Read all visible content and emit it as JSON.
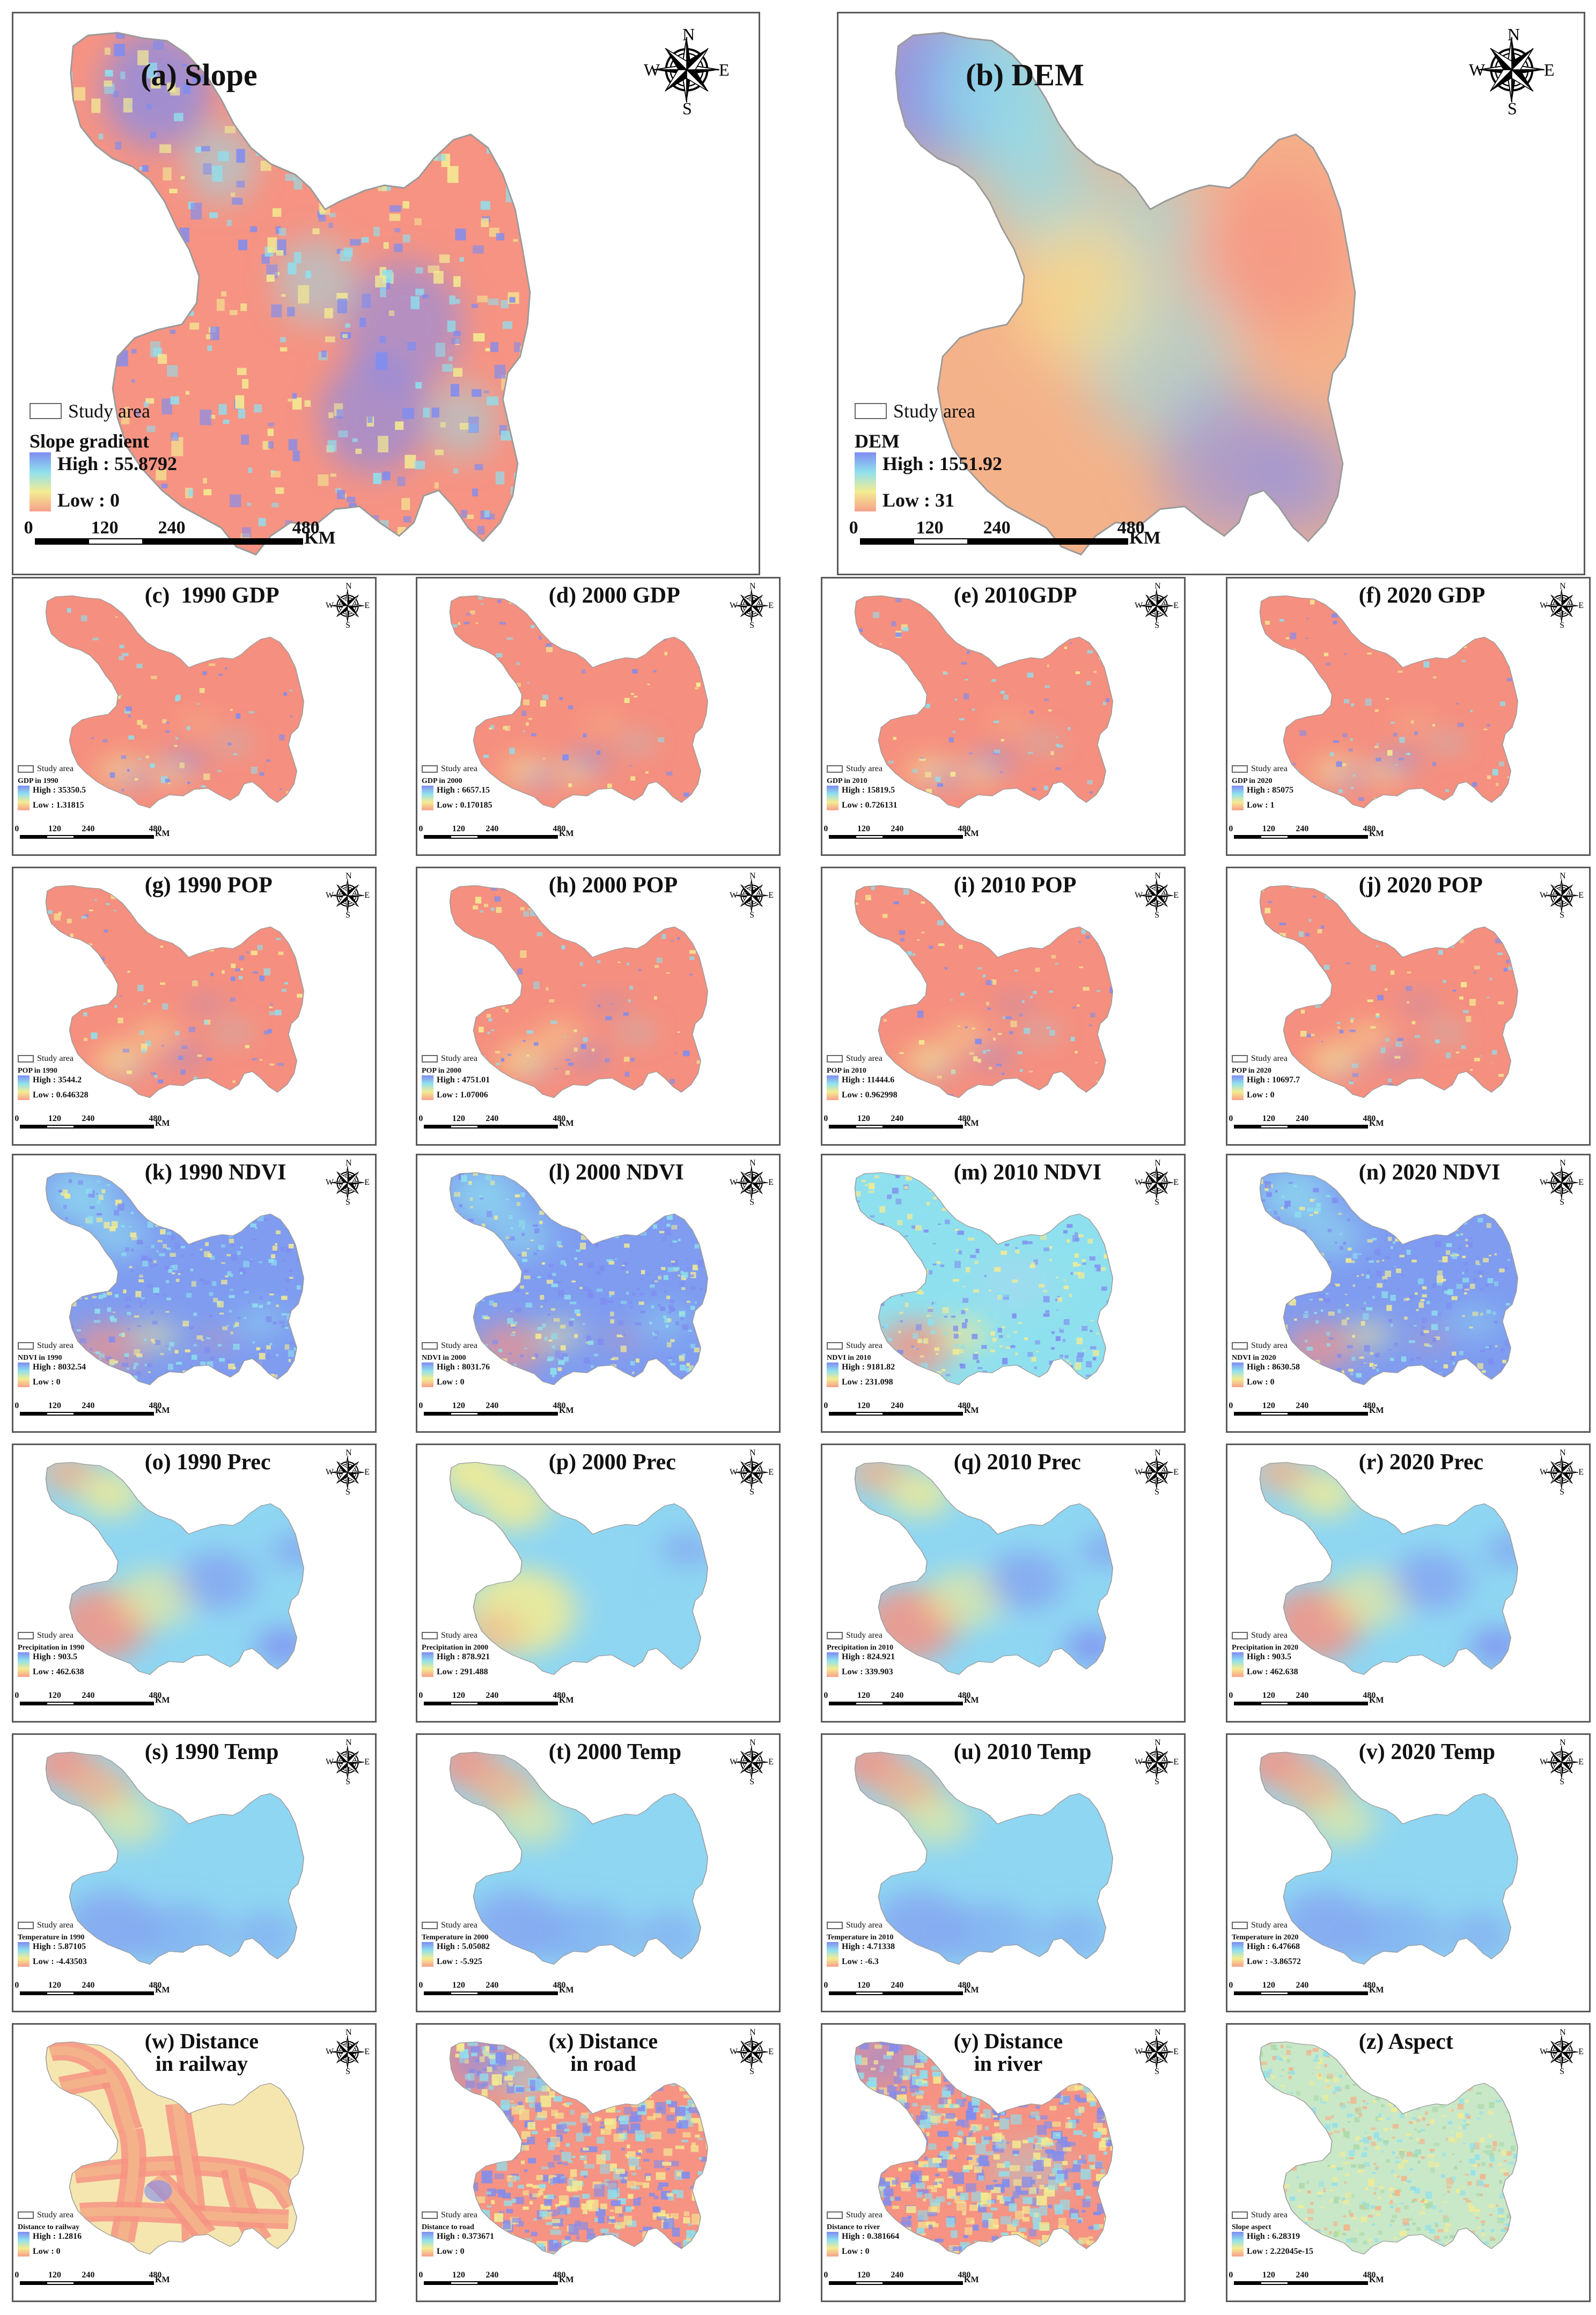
{
  "colors": {
    "high": "#7f8cf0",
    "mid_high": "#8fe0ee",
    "mid": "#f4ec92",
    "low": "#f7a08a",
    "salmon": "#f58f7f",
    "frame": "#5a5a5a"
  },
  "compass": {
    "n": "N",
    "s": "S",
    "e": "E",
    "w": "W"
  },
  "scale": {
    "t0": "0",
    "t1": "120",
    "t2": "240",
    "t3": "480",
    "unit": "KM"
  },
  "study_area_label": "Study area",
  "high_prefix": "High : ",
  "low_prefix": "Low : ",
  "panels": {
    "a": {
      "title": "(a) Slope",
      "legend_title": "Slope gradient",
      "high": "55.8792",
      "low": "0",
      "style": "slope"
    },
    "b": {
      "title": "(b) DEM",
      "legend_title": "DEM",
      "high": "1551.92",
      "low": "31",
      "style": "dem"
    },
    "c": {
      "title": "(c)  1990 GDP",
      "legend_title": "GDP in 1990",
      "high": "35350.5",
      "low": "1.31815",
      "style": "gdp"
    },
    "d": {
      "title": "(d) 2000 GDP",
      "legend_title": "GDP in 2000",
      "high": "6657.15",
      "low": "0.170185",
      "style": "gdp"
    },
    "e": {
      "title": "(e) 2010GDP",
      "legend_title": "GDP in 2010",
      "high": "15819.5",
      "low": "0.726131",
      "style": "gdp"
    },
    "f": {
      "title": "(f) 2020 GDP",
      "legend_title": "GDP in 2020",
      "high": "85075",
      "low": "1",
      "style": "gdp"
    },
    "g": {
      "title": "(g) 1990 POP",
      "legend_title": "POP in 1990",
      "high": "3544.2",
      "low": "0.646328",
      "style": "pop"
    },
    "h": {
      "title": "(h) 2000 POP",
      "legend_title": "POP in 2000",
      "high": "4751.01",
      "low": "1.07006",
      "style": "pop"
    },
    "i": {
      "title": "(i) 2010 POP",
      "legend_title": "POP in 2010",
      "high": "11444.6",
      "low": "0.962998",
      "style": "pop"
    },
    "j": {
      "title": "(j) 2020 POP",
      "legend_title": "POP in 2020",
      "high": "10697.7",
      "low": "0",
      "style": "pop"
    },
    "k": {
      "title": "(k) 1990 NDVI",
      "legend_title": "NDVI in 1990",
      "high": "8032.54",
      "low": "0",
      "style": "ndvi"
    },
    "l": {
      "title": "(l) 2000 NDVI",
      "legend_title": "NDVI in 2000",
      "high": "8031.76",
      "low": "0",
      "style": "ndvi"
    },
    "m": {
      "title": "(m) 2010 NDVI",
      "legend_title": "NDVI in 2010",
      "high": "9181.82",
      "low": "231.098",
      "style": "ndvi2"
    },
    "n": {
      "title": "(n) 2020 NDVI",
      "legend_title": "NDVI in 2020",
      "high": "8630.58",
      "low": "0",
      "style": "ndvi"
    },
    "o": {
      "title": "(o) 1990 Prec",
      "legend_title": "Precipitation in 1990",
      "high": "903.5",
      "low": "462.638",
      "style": "prec"
    },
    "p": {
      "title": "(p) 2000 Prec",
      "legend_title": "Precipitation in 2000",
      "high": "878.921",
      "low": "291.488",
      "style": "prec2"
    },
    "q": {
      "title": "(q) 2010 Prec",
      "legend_title": "Precipitation in 2010",
      "high": "824.921",
      "low": "339.903",
      "style": "prec"
    },
    "r": {
      "title": "(r) 2020 Prec",
      "legend_title": "Precipitation in 2020",
      "high": "903.5",
      "low": "462.638",
      "style": "prec"
    },
    "s": {
      "title": "(s) 1990 Temp",
      "legend_title": "Temperature in 1990",
      "high": "5.87105",
      "low": "-4.43503",
      "style": "temp"
    },
    "t": {
      "title": "(t) 2000 Temp",
      "legend_title": "Temperature in 2000",
      "high": "5.05082",
      "low": "-5.925",
      "style": "temp"
    },
    "u": {
      "title": "(u) 2010 Temp",
      "legend_title": "Temperature in 2010",
      "high": "4.71338",
      "low": "-6.3",
      "style": "temp"
    },
    "v": {
      "title": "(v) 2020 Temp",
      "legend_title": "Temperature in 2020",
      "high": "6.47668",
      "low": "-3.86572",
      "style": "temp"
    },
    "w": {
      "title": "(w) Distance\nin railway",
      "legend_title": "Distance to railway",
      "high": "1.2816",
      "low": "0",
      "style": "rail"
    },
    "x": {
      "title": "(x) Distance\nin road",
      "legend_title": "Distance to road",
      "high": "0.373671",
      "low": "0",
      "style": "road"
    },
    "y": {
      "title": "(y) Distance\nin river",
      "legend_title": "Distance to river",
      "high": "0.381664",
      "low": "0",
      "style": "river"
    },
    "z": {
      "title": "(z) Aspect",
      "legend_title": "Slope aspect",
      "high": "6.28319",
      "low": "2.22045e-15",
      "style": "aspect"
    }
  }
}
